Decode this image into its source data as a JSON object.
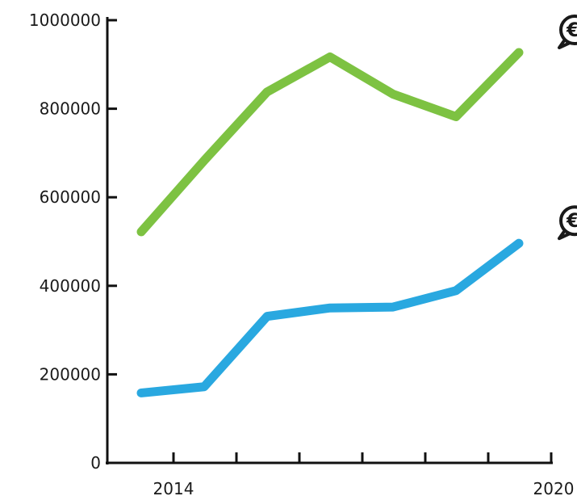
{
  "chart_data": {
    "type": "line",
    "title": "",
    "xlabel": "",
    "ylabel": "",
    "x": [
      2014,
      2015,
      2016,
      2017,
      2018,
      2019,
      2020
    ],
    "x_tick_labels": [
      "2014",
      "",
      "",
      "",
      "",
      "",
      "2020"
    ],
    "y_ticks": [
      "0",
      "200000",
      "400000",
      "600000",
      "800000",
      "1000000"
    ],
    "y_tick_values": [
      0,
      200000,
      400000,
      600000,
      800000,
      1000000
    ],
    "ylim": [
      0,
      1000000
    ],
    "grid": false,
    "series": [
      {
        "color": "#7dc242",
        "icon": "euro-coin-icon",
        "values": [
          522000,
          683000,
          838000,
          917000,
          833000,
          782000,
          927000
        ]
      },
      {
        "color": "#29a8e0",
        "icon": "euro-coin-icon",
        "values": [
          158000,
          172000,
          331000,
          350000,
          352000,
          389000,
          496000
        ]
      }
    ]
  }
}
